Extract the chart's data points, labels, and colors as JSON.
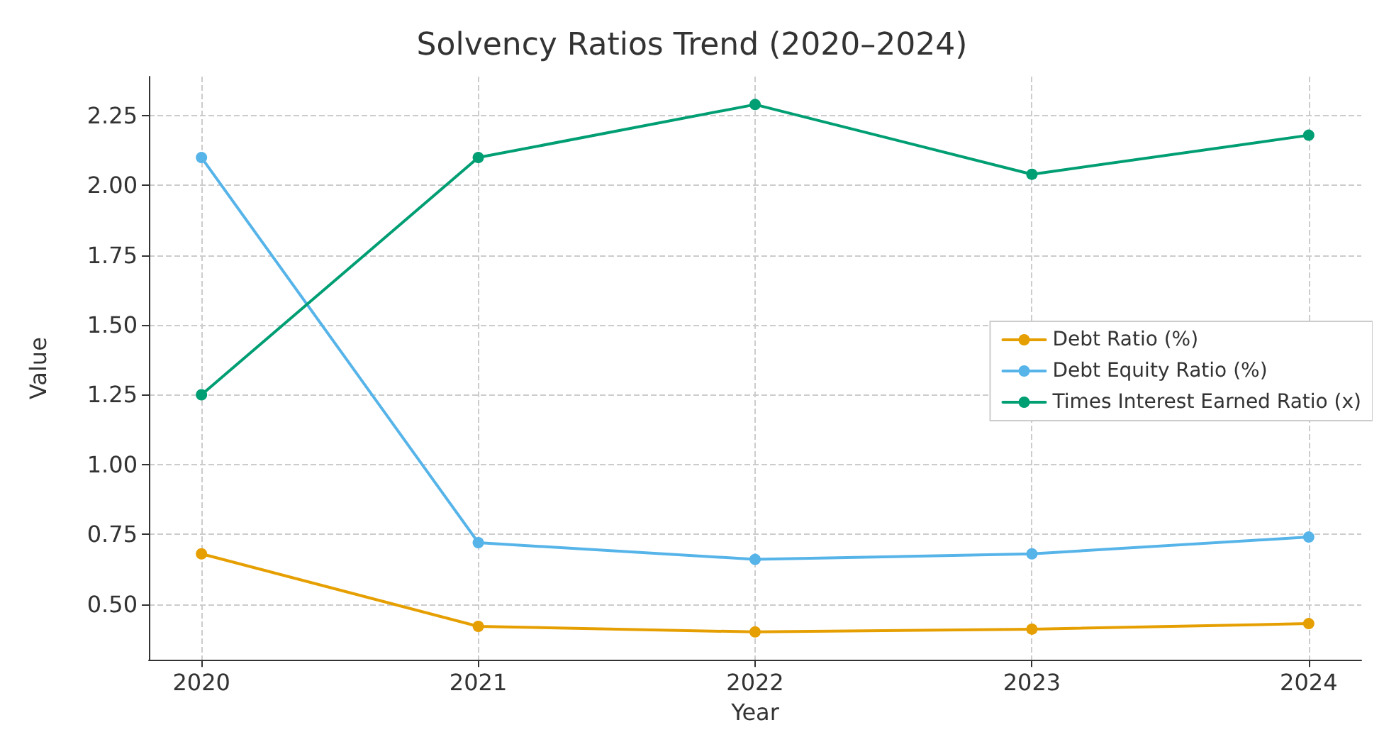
{
  "chart_data": {
    "type": "line",
    "title": "Solvency Ratios Trend (2020–2024)",
    "xlabel": "Year",
    "ylabel": "Value",
    "x": [
      2020,
      2021,
      2022,
      2023,
      2024
    ],
    "xlim": [
      2019.81,
      2024.19
    ],
    "xticks": [
      2020,
      2021,
      2022,
      2023,
      2024
    ],
    "ylim": [
      0.3,
      2.39
    ],
    "yticks": [
      {
        "value": 0.5,
        "label": "0.50"
      },
      0.75,
      {
        "value": 1,
        "label": "1.00"
      },
      1.25,
      {
        "value": 1.5,
        "label": "1.50"
      },
      1.75,
      {
        "value": 2,
        "label": "2.00"
      },
      2.25
    ],
    "series": [
      {
        "name": "Debt Ratio (%)",
        "color": "#e69f00",
        "values": [
          0.68,
          0.42,
          0.4,
          0.41,
          0.43
        ]
      },
      {
        "name": "Debt Equity Ratio (%)",
        "color": "#56b4e9",
        "values": [
          2.1,
          0.72,
          0.66,
          0.68,
          0.74
        ]
      },
      {
        "name": "Times Interest Earned Ratio (x)",
        "color": "#009e73",
        "values": [
          1.25,
          2.1,
          2.29,
          2.04,
          2.18
        ]
      }
    ],
    "grid": true,
    "legend": "right",
    "marker": "circle",
    "line_style": "solid"
  }
}
